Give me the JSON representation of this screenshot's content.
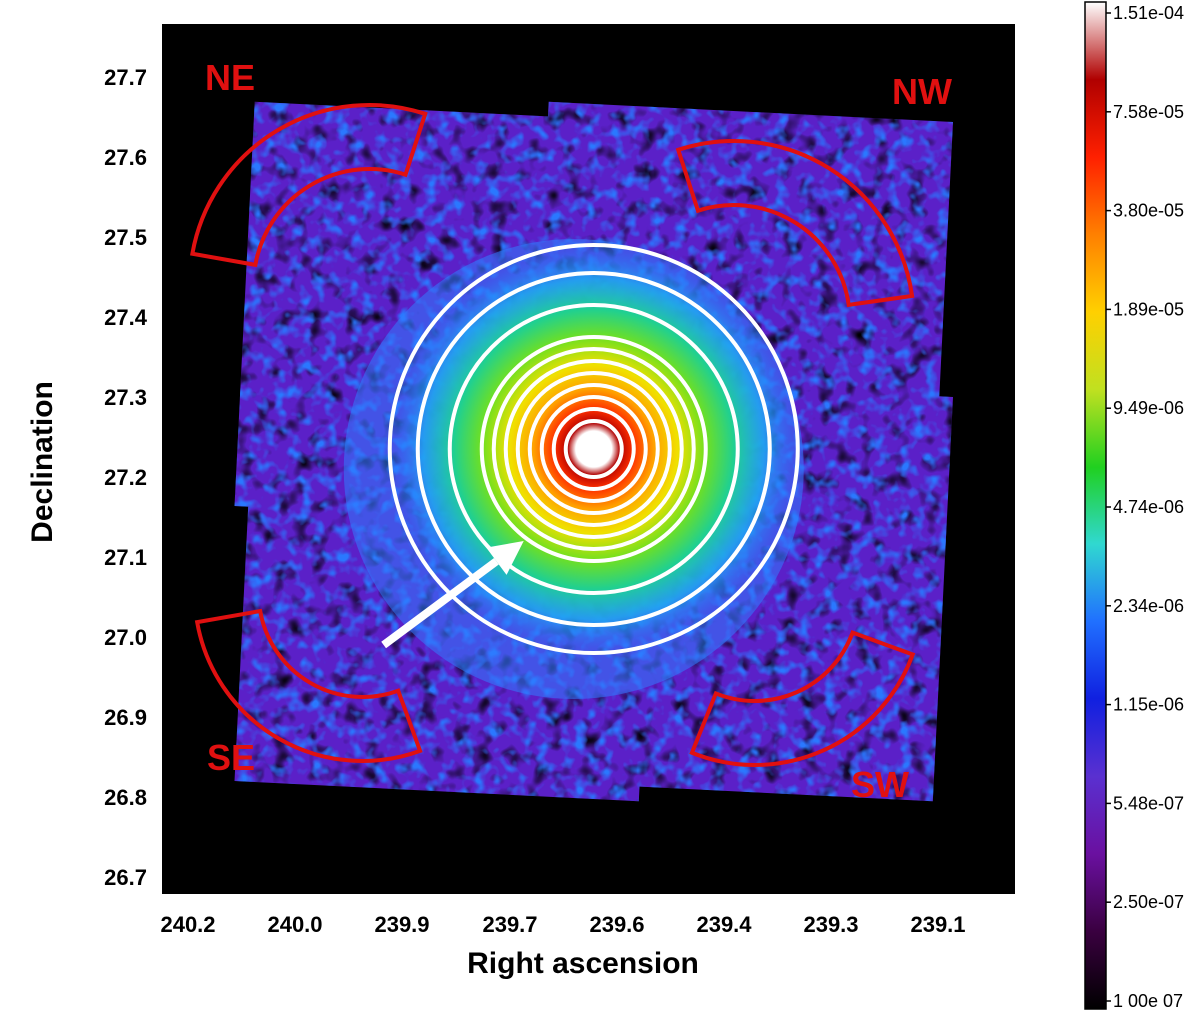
{
  "chart_data": {
    "type": "heatmap",
    "title": "",
    "xlabel": "Right ascension",
    "ylabel": "Declination",
    "x_range": [
      240.245,
      239.03
    ],
    "y_range": [
      26.68,
      27.765
    ],
    "x_ticks": [
      240.2,
      240.0,
      239.9,
      239.7,
      239.6,
      239.4,
      239.3,
      239.1
    ],
    "x_tick_labels": [
      "240.2",
      "240.0",
      "239.9",
      "239.7",
      "239.6",
      "239.4",
      "239.3",
      "239.1"
    ],
    "y_ticks": [
      26.7,
      26.8,
      26.9,
      27.0,
      27.1,
      27.2,
      27.3,
      27.4,
      27.5,
      27.6,
      27.7
    ],
    "y_tick_labels": [
      "26.7",
      "26.8",
      "26.9",
      "27.0",
      "27.1",
      "27.2",
      "27.3",
      "27.4",
      "27.5",
      "27.6",
      "27.7"
    ],
    "colorbar": {
      "labels": [
        "1.51e-04",
        "7.58e-05",
        "3.80e-05",
        "1.89e-05",
        "9.49e-06",
        "4.74e-06",
        "2.34e-06",
        "1.15e-06",
        "5.48e-07",
        "2.50e-07",
        "1 00e 07"
      ],
      "colors": [
        "#000000",
        "#3a0040",
        "#6a10a0",
        "#5a30d0",
        "#1020e0",
        "#2070ff",
        "#30d8d0",
        "#20d020",
        "#c0e020",
        "#ffd000",
        "#ff8000",
        "#ff2000",
        "#b00000",
        "#ffffff"
      ]
    },
    "cluster_center": {
      "ra": 239.63,
      "dec": 27.235
    },
    "annulus_radii_deg": [
      0.035,
      0.05,
      0.065,
      0.08,
      0.095,
      0.11,
      0.125,
      0.14,
      0.18,
      0.22,
      0.255
    ],
    "arrow": {
      "from": {
        "ra": 239.93,
        "dec": 26.99
      },
      "to": {
        "ra": 239.73,
        "dec": 27.12
      }
    },
    "regions": [
      {
        "label": "NE",
        "center": {
          "ra": 239.95,
          "dec": 27.44
        },
        "r_inner": 0.145,
        "r_outer": 0.225,
        "angle_start": 72,
        "angle_end": 170
      },
      {
        "label": "NW",
        "center": {
          "ra": 239.43,
          "dec": 27.395
        },
        "r_inner": 0.145,
        "r_outer": 0.225,
        "angle_start": 8,
        "angle_end": 108
      },
      {
        "label": "SE",
        "center": {
          "ra": 239.96,
          "dec": 27.055
        },
        "r_inner": 0.13,
        "r_outer": 0.21,
        "angle_start": 190,
        "angle_end": 290
      },
      {
        "label": "SW",
        "center": {
          "ra": 239.4,
          "dec": 27.05
        },
        "r_inner": 0.13,
        "r_outer": 0.21,
        "angle_start": 248,
        "angle_end": 340
      }
    ],
    "region_color": "#e01010",
    "ring_color": "#ffffff"
  }
}
